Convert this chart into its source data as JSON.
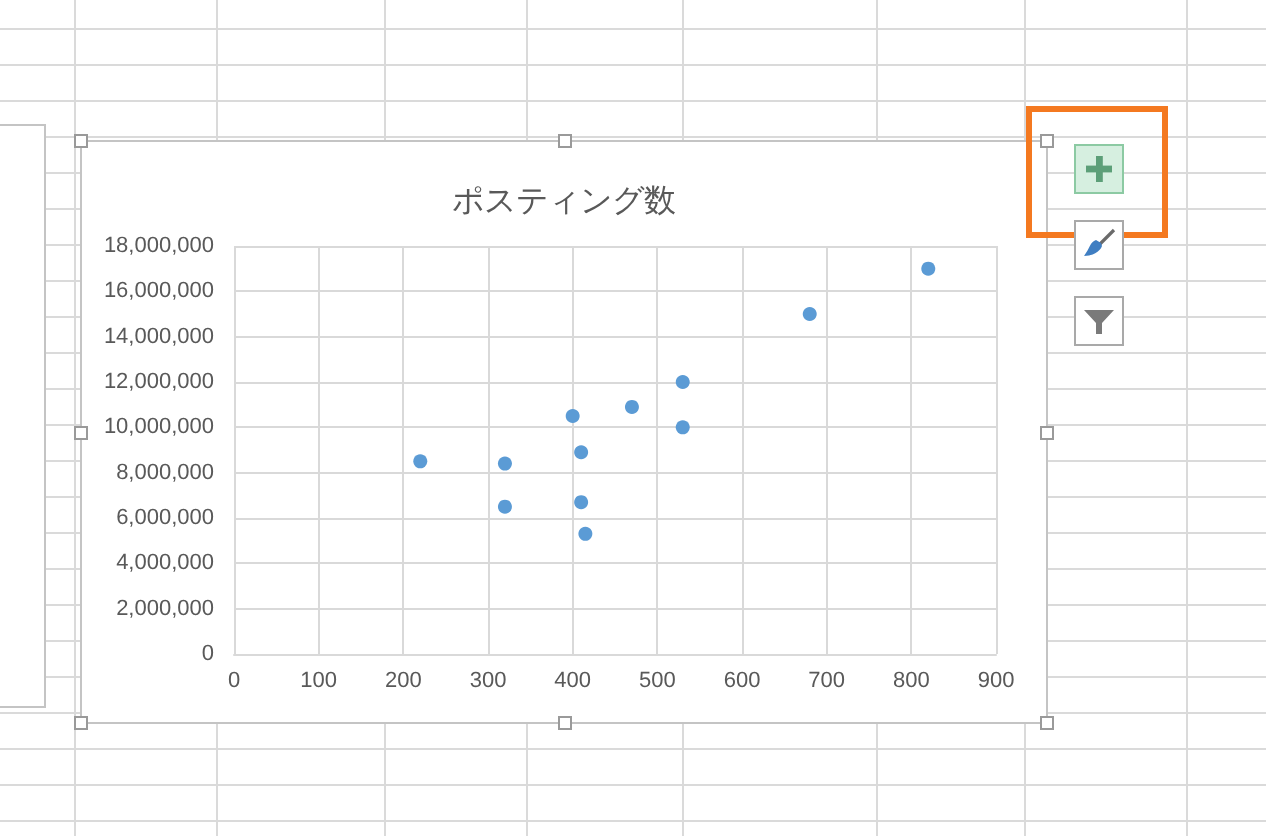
{
  "chart_data": {
    "type": "scatter",
    "title": "ポスティング数",
    "x": [
      220,
      320,
      320,
      400,
      410,
      410,
      415,
      470,
      530,
      530,
      680,
      820
    ],
    "values": [
      8500000,
      8400000,
      6500000,
      10500000,
      8900000,
      6700000,
      5300000,
      10900000,
      12000000,
      10000000,
      15000000,
      17000000
    ],
    "color": "#5b9bd5",
    "marker": "circle",
    "grid": true,
    "xlim": [
      0,
      900
    ],
    "xticks": [
      0,
      100,
      200,
      300,
      400,
      500,
      600,
      700,
      800,
      900
    ],
    "ylim": [
      0,
      18000000
    ],
    "yticks": [
      0,
      {
        "value": 2000000,
        "label": "2,000,000"
      },
      {
        "value": 4000000,
        "label": "4,000,000"
      },
      {
        "value": 6000000,
        "label": "6,000,000"
      },
      {
        "value": 8000000,
        "label": "8,000,000"
      },
      {
        "value": 10000000,
        "label": "10,000,000"
      },
      {
        "value": 12000000,
        "label": "12,000,000"
      },
      {
        "value": 14000000,
        "label": "14,000,000"
      },
      {
        "value": 16000000,
        "label": "16,000,000"
      },
      {
        "value": 18000000,
        "label": "18,000,000"
      }
    ]
  }
}
